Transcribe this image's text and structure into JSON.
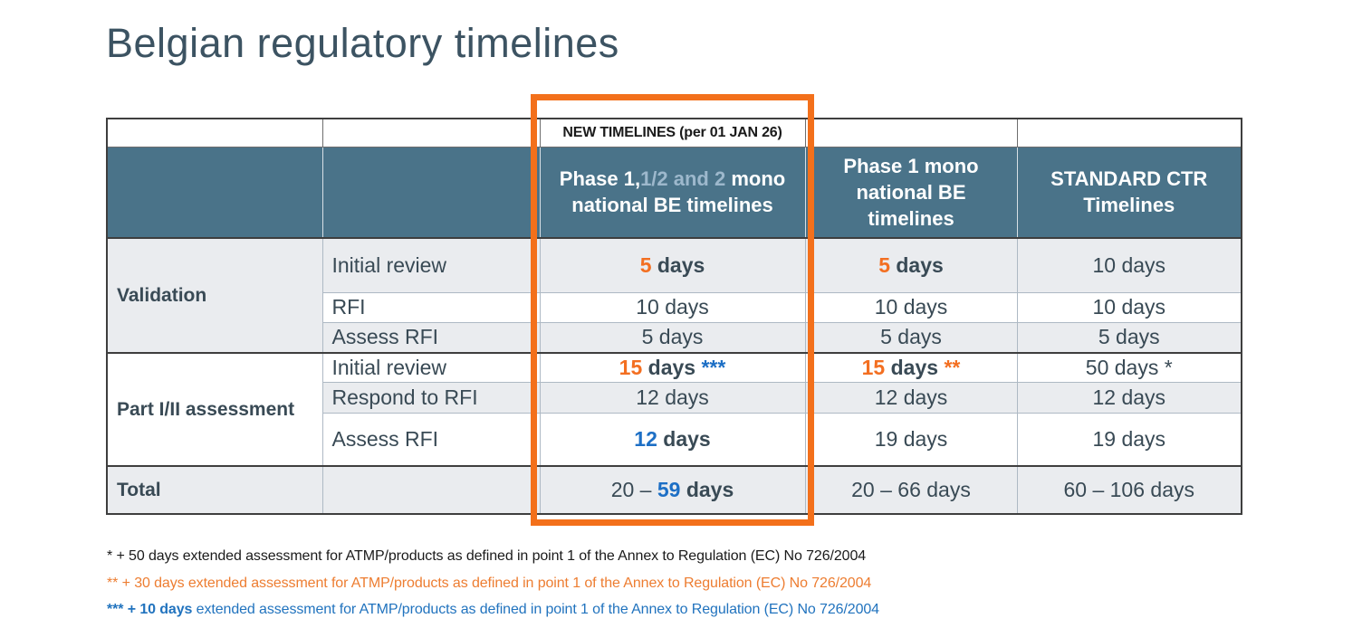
{
  "page": {
    "title": "Belgian regulatory timelines"
  },
  "colors": {
    "title_color": "#3C5362",
    "header_bg": "#4A7389",
    "header_light_text": "#9DB8CC",
    "row_light_bg": "#EAECEF",
    "text_dark": "#394A55",
    "accent_orange": "#F36F21",
    "accent_blue": "#1D6FC5",
    "box_orange": "#F3701B",
    "footnote_orange": "#ED7D31",
    "footnote_blue": "#2173BE"
  },
  "table": {
    "banner": "NEW TIMELINES (per 01 JAN 26)",
    "header": {
      "phase12": {
        "white1": "Phase 1,",
        "light": "1/2 and 2",
        "white2": " mono national BE timelines"
      },
      "phase1mono": "Phase 1 mono national BE timelines",
      "standard_ctr": "STANDARD CTR Timelines"
    },
    "validation": {
      "label": "Validation",
      "initial_review": {
        "label": "Initial review",
        "new_num": "5",
        "new_rest": " days",
        "mono_num": "5",
        "mono_rest": " days",
        "ctr": "10 days"
      },
      "rfi": {
        "label": "RFI",
        "new": "10 days",
        "mono": "10 days",
        "ctr": "10 days"
      },
      "assess_rfi": {
        "label": "Assess RFI",
        "new": "5 days",
        "mono": "5 days",
        "ctr": "5 days"
      }
    },
    "part_i_ii": {
      "label": "Part I/II assessment",
      "initial_review": {
        "label": "Initial review",
        "new_num": "15",
        "new_rest": " days ",
        "new_note": "***",
        "mono_num": "15",
        "mono_rest": " days ",
        "mono_note": "**",
        "ctr": "50 days *"
      },
      "respond_rfi": {
        "label": "Respond to RFI",
        "new": "12 days",
        "mono": "12 days",
        "ctr": "12 days"
      },
      "assess_rfi": {
        "label": "Assess RFI",
        "new_num": "12",
        "new_rest": " days",
        "mono": "19 days",
        "ctr": "19 days"
      }
    },
    "total": {
      "label": "Total",
      "new_prefix": "20 – ",
      "new_num": "59",
      "new_rest": " days",
      "mono": "20 – 66 days",
      "ctr": "60 – 106 days"
    }
  },
  "footnotes": [
    {
      "text": "* + 50 days extended assessment for ATMP/products as defined in point 1 of the Annex to Regulation (EC) No 726/2004"
    },
    {
      "text": "** + 30 days extended assessment for ATMP/products as defined in point 1 of the Annex to Regulation (EC) No 726/2004"
    },
    {
      "bold": "*** + 10 days",
      "text": " extended assessment for ATMP/products as defined in point 1 of the Annex to Regulation (EC) No 726/2004"
    }
  ]
}
